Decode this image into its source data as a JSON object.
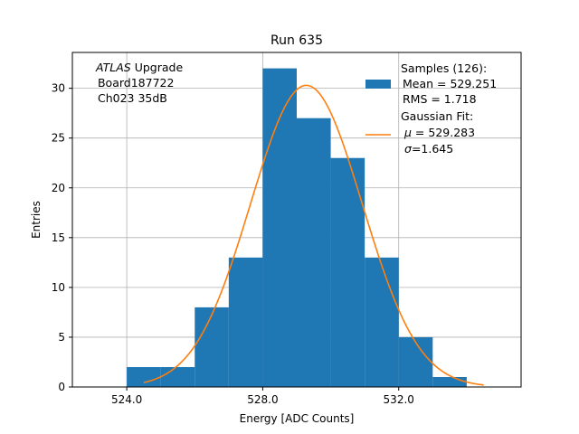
{
  "chart_data": {
    "type": "bar",
    "title": "Run 635",
    "xlabel": "Energy [ADC Counts]",
    "ylabel": "Entries",
    "xlim": [
      522.4,
      535.6
    ],
    "ylim": [
      0,
      33.6
    ],
    "grid": true,
    "xticks": [
      524.0,
      528.0,
      532.0
    ],
    "xtick_labels": [
      "524.0",
      "528.0",
      "532.0"
    ],
    "yticks": [
      0,
      5,
      10,
      15,
      20,
      25,
      30
    ],
    "ytick_labels": [
      "0",
      "5",
      "10",
      "15",
      "20",
      "25",
      "30"
    ],
    "bins": [
      {
        "x0": 524.0,
        "x1": 525.0,
        "count": 2
      },
      {
        "x0": 525.0,
        "x1": 526.0,
        "count": 2
      },
      {
        "x0": 526.0,
        "x1": 527.0,
        "count": 8
      },
      {
        "x0": 527.0,
        "x1": 528.0,
        "count": 13
      },
      {
        "x0": 528.0,
        "x1": 529.0,
        "count": 32
      },
      {
        "x0": 529.0,
        "x1": 530.0,
        "count": 27
      },
      {
        "x0": 530.0,
        "x1": 531.0,
        "count": 23
      },
      {
        "x0": 531.0,
        "x1": 532.0,
        "count": 13
      },
      {
        "x0": 532.0,
        "x1": 533.0,
        "count": 5
      },
      {
        "x0": 533.0,
        "x1": 534.0,
        "count": 1
      }
    ],
    "fit": {
      "type": "gaussian",
      "mu": 529.283,
      "sigma": 1.645,
      "amplitude": 30.3,
      "x_range": [
        524.5,
        534.5
      ]
    },
    "annotation": {
      "italic": "ATLAS",
      "rest": " Upgrade",
      "line2": " Board187722",
      "line3": " Ch023 35dB"
    },
    "legend": {
      "placement": "top-right",
      "samples": {
        "line1": "Samples (126):",
        "line2": " Mean = 529.251",
        "line3": " RMS = 1.718"
      },
      "fit": {
        "line1": "Gaussian Fit:",
        "line2_sym": "μ",
        "line2_rest": " = 529.283",
        "line3_sym": "σ",
        "line3_rest": "=1.645"
      }
    },
    "colors": {
      "bars": "#1f77b4",
      "fit": "#ff7f0e",
      "grid": "#b0b0b0"
    }
  }
}
